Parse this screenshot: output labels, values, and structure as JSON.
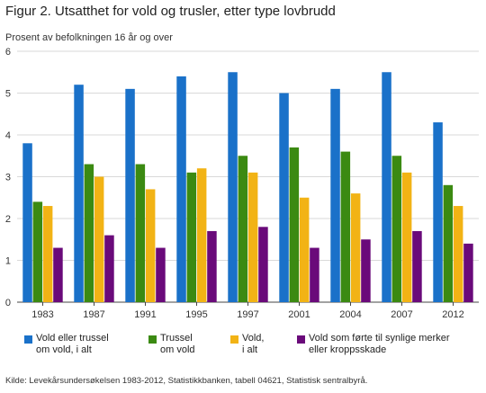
{
  "title": "Figur 2. Utsatthet for vold og trusler, etter type lovbrudd",
  "source": "Kilde: Levekårsundersøkelsen 1983-2012, Statistikkbanken, tabell 04621, Statistisk sentralbyrå.",
  "chart_data": {
    "type": "bar",
    "title": "Figur 2. Utsatthet for vold og trusler, etter type lovbrudd",
    "xlabel": "",
    "ylabel": "Prosent av befolkningen 16 år og over",
    "ylim": [
      0,
      6
    ],
    "yticks": [
      "0",
      "1",
      "2",
      "3",
      "4",
      "5",
      "6"
    ],
    "grid": "horizontal",
    "legend_position": "bottom",
    "categories": [
      "1983",
      "1987",
      "1991",
      "1995",
      "1997",
      "2001",
      "2004",
      "2007",
      "2012"
    ],
    "series": [
      {
        "name": "Vold eller trussel\nom vold, i alt",
        "color": "#1a71c9",
        "values": [
          3.8,
          5.2,
          5.1,
          5.4,
          5.5,
          5.0,
          5.1,
          5.5,
          4.3
        ]
      },
      {
        "name": "Trussel\nom vold",
        "color": "#3b8a12",
        "values": [
          2.4,
          3.3,
          3.3,
          3.1,
          3.5,
          3.7,
          3.6,
          3.5,
          2.8
        ]
      },
      {
        "name": "Vold,\ni alt",
        "color": "#f2b315",
        "values": [
          2.3,
          3.0,
          2.7,
          3.2,
          3.1,
          2.5,
          2.6,
          3.1,
          2.3
        ]
      },
      {
        "name": "Vold som førte til synlige merker\neller kroppsskade",
        "color": "#6a0a7a",
        "values": [
          1.3,
          1.6,
          1.3,
          1.7,
          1.8,
          1.3,
          1.5,
          1.7,
          1.4
        ]
      }
    ]
  }
}
